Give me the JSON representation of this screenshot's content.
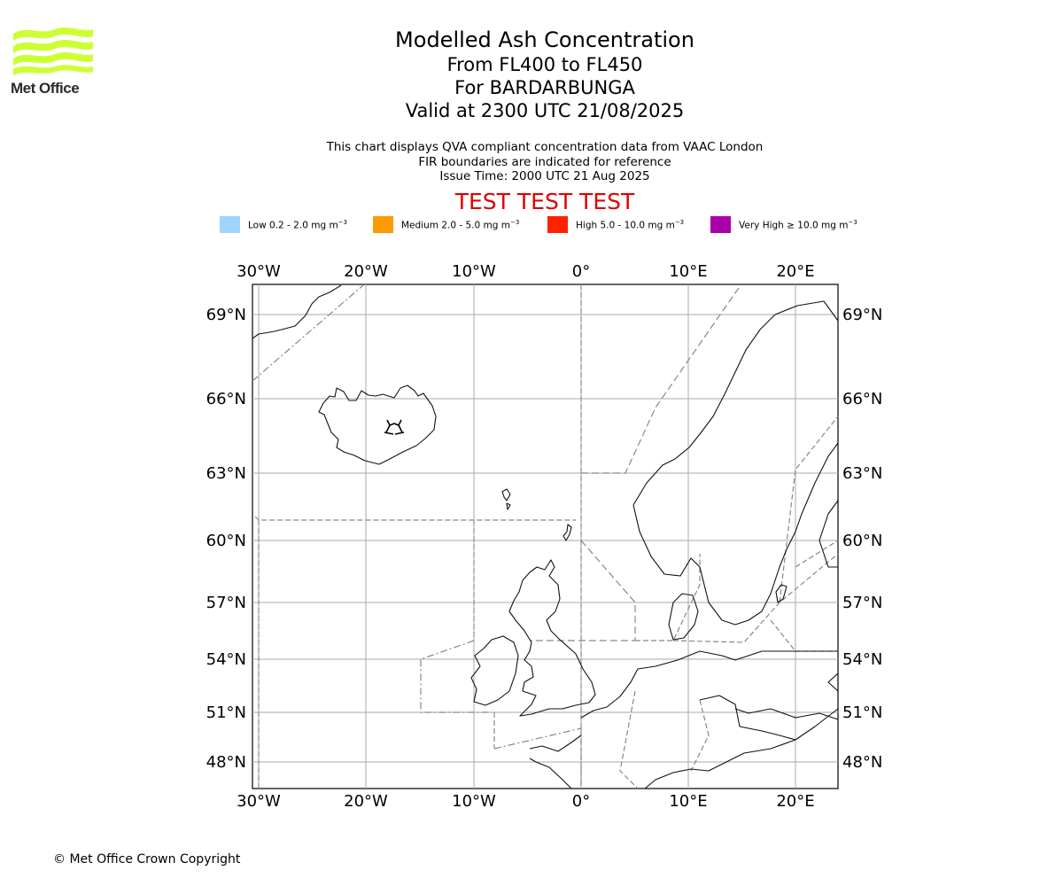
{
  "logo": {
    "text": "Met Office",
    "color": "#ccff33"
  },
  "header": {
    "title": "Modelled Ash Concentration",
    "level": "From FL400 to FL450",
    "volcano": "For BARDARBUNGA",
    "valid": "Valid at 2300 UTC 21/08/2025"
  },
  "notes": {
    "line1": "This chart displays QVA compliant concentration data from VAAC London",
    "line2": "FIR boundaries are indicated for reference",
    "issue": "Issue Time: 2000 UTC 21 Aug 2025"
  },
  "test_banner": "TEST TEST TEST",
  "legend": [
    {
      "label": "Low 0.2 - 2.0 mg m",
      "sup": "−3",
      "color": "#a0d4ff"
    },
    {
      "label": "Medium 2.0 - 5.0 mg m",
      "sup": "−3",
      "color": "#ff9900"
    },
    {
      "label": "High 5.0 - 10.0 mg m",
      "sup": "−3",
      "color": "#ff2200"
    },
    {
      "label": "Very High  ≥  10.0 mg m",
      "sup": "−3",
      "color": "#aa00aa"
    }
  ],
  "map": {
    "lon_labels": [
      "30°W",
      "20°W",
      "10°W",
      "0°",
      "10°E",
      "20°E"
    ],
    "lat_labels": [
      "69°N",
      "66°N",
      "63°N",
      "60°N",
      "57°N",
      "54°N",
      "51°N",
      "48°N"
    ],
    "volcano_icon": "volcano-icon",
    "ash_areas": []
  },
  "copyright": "© Met Office Crown Copyright"
}
